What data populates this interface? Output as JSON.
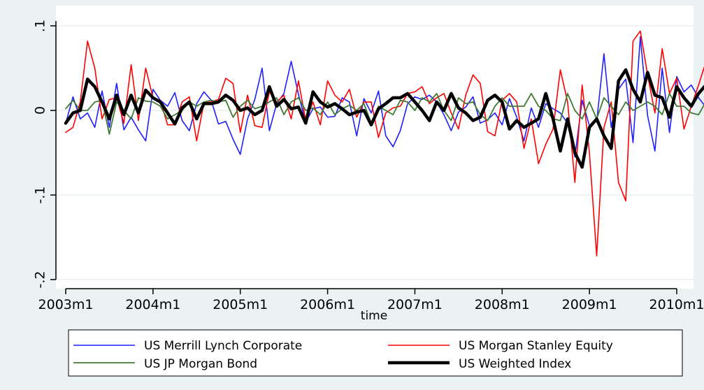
{
  "chart_data": {
    "type": "line",
    "xlabel": "time",
    "ylabel": "",
    "ylim": [
      -0.2,
      0.1
    ],
    "grid": true,
    "legend_position": "bottom",
    "x_tick_labels": [
      "2003m1",
      "2004m1",
      "2005m1",
      "2006m1",
      "2007m1",
      "2008m1",
      "2009m1",
      "2010m1"
    ],
    "y_tick_labels": [
      "-.2",
      "-.1",
      "0",
      ".1"
    ],
    "y_ticks": [
      -0.2,
      -0.1,
      0,
      0.1
    ],
    "x_start": 2003.0,
    "x_step": 0.08333,
    "series": [
      {
        "name": "US Merrill Lynch Corporate",
        "color": "#1f1fff",
        "width": 1.6,
        "values": [
          -0.015,
          0.016,
          -0.01,
          -0.003,
          -0.02,
          0.023,
          -0.02,
          0.032,
          -0.023,
          -0.008,
          -0.023,
          -0.036,
          0.025,
          0.012,
          0.005,
          0.021,
          -0.012,
          -0.024,
          0.008,
          0.022,
          0.012,
          -0.016,
          -0.013,
          -0.034,
          -0.052,
          -0.01,
          0.013,
          0.05,
          -0.024,
          0.008,
          0.02,
          0.058,
          0.019,
          -0.014,
          0.002,
          0.004,
          -0.008,
          -0.007,
          0.015,
          0.01,
          -0.03,
          0.014,
          -0.003,
          0.023,
          -0.03,
          -0.043,
          -0.024,
          0.008,
          0.016,
          0.013,
          0.018,
          0.01,
          -0.005,
          -0.024,
          -0.002,
          0.004,
          0.016,
          -0.015,
          -0.011,
          -0.003,
          -0.017,
          0.014,
          -0.008,
          -0.036,
          0.003,
          -0.02,
          0.008,
          0.002,
          -0.003,
          -0.015,
          -0.055,
          0.012,
          -0.018,
          -0.013,
          0.067,
          -0.02,
          0.025,
          0.037,
          -0.038,
          0.087,
          -0.006,
          -0.048,
          0.05,
          -0.026,
          0.04,
          0.022,
          0.03,
          0.015,
          0.004,
          0.005,
          -0.003,
          -0.008,
          0.032,
          0.018,
          0.051,
          0.032,
          0.01
        ]
      },
      {
        "name": "US Morgan Stanley Equity",
        "color": "#ff0000",
        "width": 1.6,
        "values": [
          -0.026,
          -0.02,
          0.01,
          0.082,
          0.05,
          -0.01,
          0.013,
          0.015,
          -0.015,
          0.054,
          -0.012,
          0.05,
          0.015,
          0.012,
          -0.017,
          -0.017,
          0.01,
          0.016,
          -0.036,
          0.009,
          0.01,
          0.013,
          0.038,
          0.032,
          -0.026,
          0.018,
          -0.018,
          -0.02,
          0.022,
          0.01,
          0.018,
          -0.01,
          0.035,
          -0.012,
          0.01,
          -0.017,
          0.035,
          0.018,
          0.01,
          0.025,
          -0.008,
          0.01,
          0.01,
          -0.032,
          -0.003,
          0.003,
          0.005,
          0.02,
          0.022,
          0.028,
          0.008,
          0.015,
          0.02,
          -0.003,
          -0.022,
          0.018,
          0.042,
          0.032,
          -0.025,
          -0.03,
          0.012,
          0.02,
          0.01,
          -0.045,
          -0.01,
          -0.063,
          -0.04,
          -0.022,
          0.048,
          0.01,
          -0.085,
          0.03,
          -0.05,
          -0.172,
          -0.02,
          0.01,
          -0.085,
          -0.107,
          0.082,
          0.094,
          0.042,
          -0.003,
          0.073,
          0.02,
          0.038,
          -0.022,
          0.005,
          0.03,
          0.057,
          -0.005,
          -0.038,
          0.028,
          0.058
        ]
      },
      {
        "name": "US JP Morgan Bond",
        "color": "#407a32",
        "width": 1.8,
        "values": [
          0.002,
          0.012,
          0.0,
          0.0,
          0.01,
          0.012,
          -0.028,
          0.01,
          0.0,
          -0.01,
          0.015,
          0.011,
          0.01,
          0.005,
          -0.01,
          -0.005,
          0.0,
          0.01,
          0.005,
          0.01,
          0.012,
          0.01,
          0.012,
          -0.008,
          0.005,
          0.012,
          0.002,
          0.005,
          0.01,
          0.015,
          -0.005,
          0.01,
          0.015,
          0.0,
          0.003,
          -0.005,
          0.01,
          -0.005,
          0.002,
          0.006,
          0.0,
          0.008,
          -0.015,
          0.005,
          0.0,
          -0.005,
          0.012,
          0.01,
          0.0,
          0.015,
          0.01,
          0.02,
          0.0,
          -0.012,
          0.015,
          0.008,
          0.01,
          -0.005,
          -0.012,
          0.005,
          0.015,
          0.005,
          0.005,
          0.005,
          0.02,
          0.005,
          0.0,
          -0.01,
          -0.012,
          0.02,
          0.0,
          -0.01,
          0.01,
          -0.01,
          0.015,
          0.005,
          -0.005,
          0.01,
          0.0,
          0.005,
          0.01,
          0.005,
          -0.005,
          0.02,
          0.005,
          0.005,
          -0.003,
          -0.005,
          0.01,
          0.01,
          0.005,
          0.01,
          0.002
        ]
      },
      {
        "name": "US Weighted Index",
        "color": "#000000",
        "width": 4.5,
        "values": [
          -0.015,
          -0.003,
          0.0,
          0.037,
          0.028,
          0.01,
          -0.01,
          0.018,
          -0.005,
          0.018,
          -0.003,
          0.024,
          0.015,
          0.01,
          -0.003,
          -0.016,
          0.003,
          0.01,
          -0.01,
          0.008,
          0.008,
          0.01,
          0.018,
          0.012,
          0.0,
          0.003,
          -0.005,
          0.0,
          0.028,
          0.005,
          0.013,
          0.002,
          0.004,
          -0.015,
          0.022,
          0.01,
          0.004,
          0.008,
          0.002,
          -0.005,
          -0.002,
          0.0,
          -0.017,
          0.002,
          0.008,
          0.015,
          0.015,
          0.02,
          0.01,
          0.0,
          -0.012,
          0.01,
          0.0,
          0.02,
          0.003,
          -0.003,
          -0.012,
          -0.008,
          0.012,
          0.018,
          0.01,
          -0.022,
          -0.012,
          -0.02,
          -0.015,
          -0.01,
          0.02,
          -0.01,
          -0.048,
          -0.01,
          -0.05,
          -0.067,
          -0.02,
          -0.01,
          -0.03,
          -0.045,
          0.035,
          0.048,
          0.025,
          0.01,
          0.045,
          0.018,
          0.015,
          -0.008,
          0.028,
          0.015,
          0.005,
          0.02,
          0.03
        ]
      }
    ]
  }
}
